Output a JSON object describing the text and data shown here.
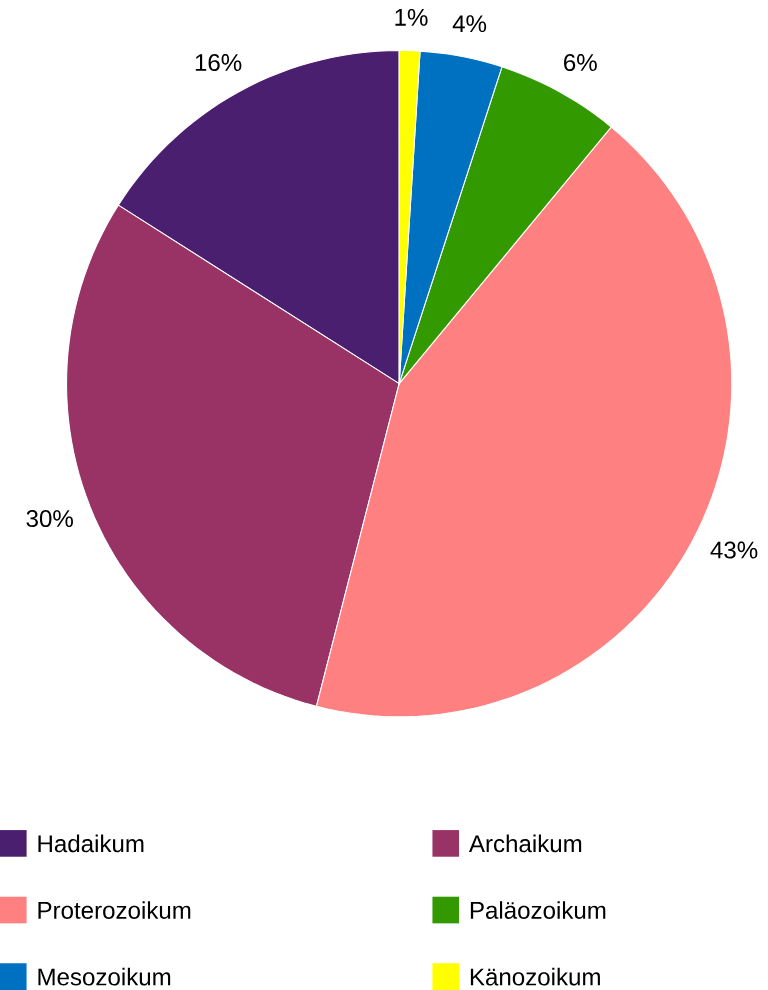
{
  "chart_data": {
    "type": "pie",
    "categories": [
      "Hadaikum",
      "Archaikum",
      "Proterozoikum",
      "Paläozoikum",
      "Mesozoikum",
      "Känozoikum"
    ],
    "values": [
      16,
      30,
      43,
      6,
      4,
      1
    ],
    "value_labels": [
      "16%",
      "30%",
      "43%",
      "6%",
      "4%",
      "1%"
    ],
    "colors": [
      "#4b1f6f",
      "#993366",
      "#ff8080",
      "#339900",
      "#0070c0",
      "#ffff00"
    ],
    "legend": "bottom"
  }
}
